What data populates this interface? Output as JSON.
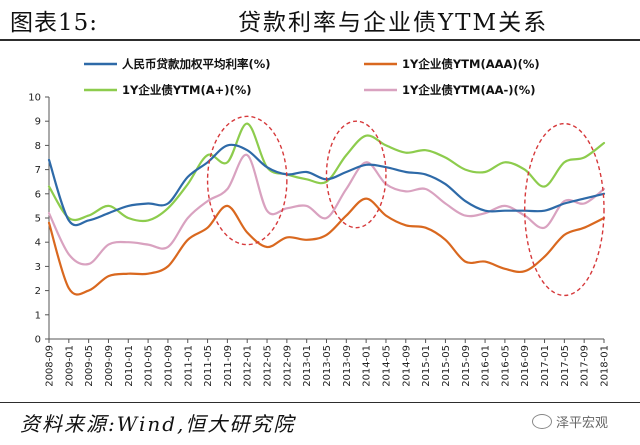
{
  "header": {
    "figure_no": "图表15:",
    "title": "贷款利率与企业债YTM关系"
  },
  "footer": {
    "source": "资料来源:Wind,恒大研究院",
    "watermark": "泽平宏观",
    "watermark_icon": "wechat-icon"
  },
  "chart_data": {
    "type": "line",
    "x": [
      "2008-09",
      "2009-01",
      "2009-05",
      "2009-09",
      "2010-01",
      "2010-05",
      "2010-09",
      "2011-01",
      "2011-05",
      "2011-09",
      "2012-01",
      "2012-05",
      "2012-09",
      "2013-01",
      "2013-05",
      "2013-09",
      "2014-01",
      "2014-05",
      "2014-09",
      "2015-01",
      "2015-05",
      "2015-09",
      "2016-01",
      "2016-05",
      "2016-09",
      "2017-01",
      "2017-05",
      "2017-09",
      "2018-01"
    ],
    "ylim": [
      0,
      10
    ],
    "yticks": [
      "0",
      "1",
      "2",
      "3",
      "4",
      "5",
      "6",
      "7",
      "8",
      "9",
      "10"
    ],
    "grid": false,
    "legend": "top",
    "series": [
      {
        "name": "人民币贷款加权平均利率(%)",
        "color": "#2e6aa8",
        "values": [
          7.4,
          4.9,
          4.9,
          5.2,
          5.5,
          5.6,
          5.6,
          6.7,
          7.3,
          8.0,
          7.8,
          7.1,
          6.8,
          6.9,
          6.6,
          6.9,
          7.2,
          7.1,
          6.9,
          6.8,
          6.4,
          5.7,
          5.3,
          5.3,
          5.3,
          5.3,
          5.6,
          5.8,
          6.0
        ]
      },
      {
        "name": "1Y企业债YTM(AAA)(%)",
        "color": "#d9681f",
        "values": [
          4.8,
          2.1,
          2.0,
          2.6,
          2.7,
          2.7,
          3.0,
          4.1,
          4.6,
          5.5,
          4.4,
          3.8,
          4.2,
          4.1,
          4.3,
          5.1,
          5.8,
          5.1,
          4.7,
          4.6,
          4.1,
          3.2,
          3.2,
          2.9,
          2.8,
          3.4,
          4.3,
          4.6,
          5.0
        ]
      },
      {
        "name": "1Y企业债YTM(A+)(%)",
        "color": "#8dcc4d",
        "values": [
          6.3,
          5.0,
          5.1,
          5.5,
          5.0,
          4.9,
          5.4,
          6.4,
          7.6,
          7.3,
          8.9,
          7.1,
          6.8,
          6.6,
          6.5,
          7.6,
          8.4,
          8.0,
          7.7,
          7.8,
          7.5,
          7.0,
          6.9,
          7.3,
          7.0,
          6.3,
          7.3,
          7.5,
          8.1
        ]
      },
      {
        "name": "1Y企业债YTM(AA-)(%)",
        "color": "#d9a2c0",
        "values": [
          5.2,
          3.5,
          3.1,
          3.9,
          4.0,
          3.9,
          3.8,
          5.0,
          5.7,
          6.2,
          7.6,
          5.3,
          5.4,
          5.5,
          5.0,
          6.2,
          7.3,
          6.4,
          6.1,
          6.2,
          5.6,
          5.1,
          5.2,
          5.5,
          5.1,
          4.6,
          5.7,
          5.6,
          6.2
        ]
      }
    ],
    "annotations": [
      {
        "type": "dashed-ellipse",
        "color": "#d6393b",
        "x_from": "2011-05",
        "x_to": "2012-09",
        "y_from": 3.9,
        "y_to": 9.2
      },
      {
        "type": "dashed-ellipse",
        "color": "#d6393b",
        "x_from": "2013-05",
        "x_to": "2014-05",
        "y_from": 4.6,
        "y_to": 9.0
      },
      {
        "type": "dashed-ellipse",
        "color": "#d6393b",
        "x_from": "2016-09",
        "x_to": "2018-01",
        "y_from": 1.8,
        "y_to": 8.9
      }
    ]
  }
}
